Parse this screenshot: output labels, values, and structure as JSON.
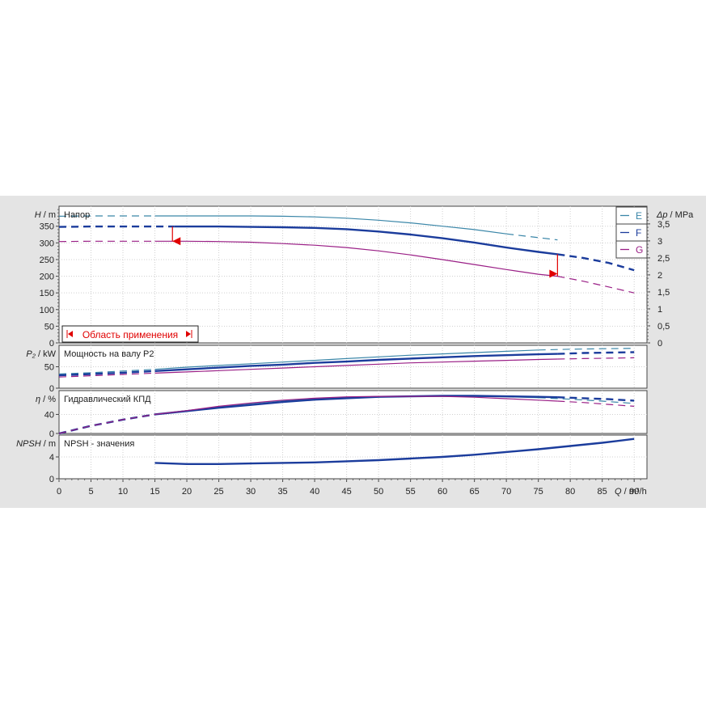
{
  "chart_data": {
    "type": "line",
    "x_axis": {
      "label_var": "Q",
      "label_unit": " / m³/h",
      "range": [
        0,
        92
      ],
      "ticks": [
        0,
        5,
        10,
        15,
        20,
        25,
        30,
        35,
        40,
        45,
        50,
        55,
        60,
        65,
        70,
        75,
        80,
        85,
        90
      ]
    },
    "legend": [
      {
        "name": "E",
        "color": "#3a86a8"
      },
      {
        "name": "F",
        "color": "#1b3c9c"
      },
      {
        "name": "G",
        "color": "#9a1f86"
      }
    ],
    "application_range": {
      "label": "Область применения",
      "q_min": 18,
      "q_max": 78,
      "color": "#e00000"
    },
    "panels": [
      {
        "id": "head",
        "title": "Напор",
        "ylabel_var": "H",
        "ylabel_unit": " / m",
        "ylim": [
          0,
          410
        ],
        "yticks": [
          0,
          50,
          100,
          150,
          200,
          250,
          300,
          350
        ],
        "secondary_axis": {
          "label_var": "Δp",
          "label_unit": " / MPa",
          "ylim": [
            0,
            4.02
          ],
          "ticks": [
            "0",
            "0,5",
            "1",
            "1,5",
            "2",
            "2,5",
            "3",
            "3,5"
          ],
          "values": [
            0,
            0.5,
            1,
            1.5,
            2,
            2.5,
            3,
            3.5
          ]
        },
        "series": [
          {
            "name": "E",
            "dashed": [
              [
                0,
                380
              ],
              [
                5,
                381
              ],
              [
                10,
                381
              ],
              [
                15,
                381
              ]
            ],
            "solid": [
              [
                15,
                381
              ],
              [
                20,
                381
              ],
              [
                25,
                381
              ],
              [
                30,
                381
              ],
              [
                35,
                380
              ],
              [
                40,
                378
              ],
              [
                45,
                374
              ],
              [
                50,
                368
              ],
              [
                55,
                360
              ],
              [
                60,
                350
              ],
              [
                65,
                340
              ],
              [
                70,
                327
              ]
            ],
            "dashed_tail": [
              [
                70,
                327
              ],
              [
                74,
                318
              ],
              [
                78,
                309
              ]
            ]
          },
          {
            "name": "F",
            "dashed": [
              [
                0,
                348
              ],
              [
                5,
                349
              ],
              [
                10,
                349
              ],
              [
                15,
                349
              ],
              [
                18,
                349
              ]
            ],
            "solid": [
              [
                18,
                349
              ],
              [
                20,
                349
              ],
              [
                25,
                349
              ],
              [
                30,
                348
              ],
              [
                35,
                347
              ],
              [
                40,
                345
              ],
              [
                45,
                341
              ],
              [
                50,
                334
              ],
              [
                55,
                325
              ],
              [
                60,
                314
              ],
              [
                65,
                301
              ],
              [
                70,
                286
              ],
              [
                75,
                273
              ],
              [
                78,
                266
              ]
            ],
            "dashed_tail": [
              [
                78,
                266
              ],
              [
                82,
                255
              ],
              [
                86,
                240
              ],
              [
                90,
                218
              ]
            ]
          },
          {
            "name": "G",
            "dashed": [
              [
                0,
                304
              ],
              [
                5,
                305
              ],
              [
                10,
                305
              ],
              [
                15,
                305
              ]
            ],
            "solid": [
              [
                15,
                305
              ],
              [
                20,
                305
              ],
              [
                25,
                304
              ],
              [
                30,
                302
              ],
              [
                35,
                298
              ],
              [
                40,
                293
              ],
              [
                45,
                286
              ],
              [
                50,
                276
              ],
              [
                55,
                264
              ],
              [
                60,
                250
              ],
              [
                65,
                235
              ],
              [
                70,
                220
              ],
              [
                75,
                206
              ],
              [
                78,
                200
              ]
            ],
            "dashed_tail": [
              [
                78,
                200
              ],
              [
                82,
                185
              ],
              [
                86,
                168
              ],
              [
                90,
                150
              ]
            ]
          }
        ]
      },
      {
        "id": "power",
        "title": "Мощность на валу P2",
        "ylabel_var": "P₂",
        "ylabel_unit": " / kW",
        "ylim": [
          0,
          100
        ],
        "yticks": [
          0,
          50
        ],
        "series": [
          {
            "name": "E",
            "dashed": [
              [
                0,
                33
              ],
              [
                5,
                36
              ],
              [
                10,
                40
              ],
              [
                15,
                44
              ]
            ],
            "solid": [
              [
                15,
                44
              ],
              [
                20,
                49
              ],
              [
                25,
                53
              ],
              [
                30,
                57
              ],
              [
                35,
                61
              ],
              [
                40,
                65
              ],
              [
                45,
                69
              ],
              [
                50,
                73
              ],
              [
                55,
                77
              ],
              [
                60,
                80
              ],
              [
                65,
                83
              ],
              [
                70,
                86
              ],
              [
                75,
                89
              ]
            ],
            "dashed_tail": [
              [
                75,
                89
              ],
              [
                80,
                91
              ],
              [
                85,
                92
              ],
              [
                90,
                93
              ]
            ]
          },
          {
            "name": "F",
            "dashed": [
              [
                0,
                30
              ],
              [
                5,
                33
              ],
              [
                10,
                36
              ],
              [
                15,
                40
              ]
            ],
            "solid": [
              [
                15,
                40
              ],
              [
                20,
                44
              ],
              [
                25,
                48
              ],
              [
                30,
                52
              ],
              [
                35,
                55
              ],
              [
                40,
                59
              ],
              [
                45,
                62
              ],
              [
                50,
                66
              ],
              [
                55,
                69
              ],
              [
                60,
                72
              ],
              [
                65,
                75
              ],
              [
                70,
                77
              ],
              [
                75,
                79
              ],
              [
                78,
                80
              ]
            ],
            "dashed_tail": [
              [
                78,
                80
              ],
              [
                82,
                82
              ],
              [
                86,
                83
              ],
              [
                90,
                84
              ]
            ]
          },
          {
            "name": "G",
            "dashed": [
              [
                0,
                26
              ],
              [
                5,
                29
              ],
              [
                10,
                32
              ],
              [
                15,
                35
              ]
            ],
            "solid": [
              [
                15,
                35
              ],
              [
                20,
                38
              ],
              [
                25,
                41
              ],
              [
                30,
                44
              ],
              [
                35,
                47
              ],
              [
                40,
                50
              ],
              [
                45,
                53
              ],
              [
                50,
                56
              ],
              [
                55,
                59
              ],
              [
                60,
                61
              ],
              [
                65,
                63
              ],
              [
                70,
                65
              ],
              [
                75,
                67
              ],
              [
                78,
                68
              ]
            ],
            "dashed_tail": [
              [
                78,
                68
              ],
              [
                82,
                69
              ],
              [
                86,
                70
              ],
              [
                90,
                71
              ]
            ]
          }
        ]
      },
      {
        "id": "efficiency",
        "title": "Гидравлический КПД",
        "ylabel_var": "η",
        "ylabel_unit": " / %",
        "ylim": [
          0,
          90
        ],
        "yticks": [
          0,
          40
        ],
        "series": [
          {
            "name": "E",
            "dashed": [
              [
                0,
                0
              ],
              [
                5,
                16
              ],
              [
                10,
                29
              ],
              [
                15,
                40
              ]
            ],
            "solid": [
              [
                15,
                40
              ],
              [
                20,
                48
              ],
              [
                25,
                56
              ],
              [
                30,
                63
              ],
              [
                35,
                69
              ],
              [
                40,
                73
              ],
              [
                45,
                76
              ],
              [
                50,
                77
              ],
              [
                55,
                78
              ],
              [
                60,
                78
              ],
              [
                65,
                78
              ],
              [
                70,
                77
              ],
              [
                75,
                75
              ]
            ],
            "dashed_tail": [
              [
                75,
                75
              ],
              [
                80,
                72
              ],
              [
                85,
                68
              ],
              [
                90,
                63
              ]
            ]
          },
          {
            "name": "F",
            "dashed": [
              [
                0,
                0
              ],
              [
                5,
                16
              ],
              [
                10,
                29
              ],
              [
                15,
                40
              ]
            ],
            "solid": [
              [
                15,
                40
              ],
              [
                20,
                47
              ],
              [
                25,
                54
              ],
              [
                30,
                60
              ],
              [
                35,
                66
              ],
              [
                40,
                71
              ],
              [
                45,
                74
              ],
              [
                50,
                77
              ],
              [
                55,
                78
              ],
              [
                60,
                79
              ],
              [
                65,
                79
              ],
              [
                70,
                78
              ],
              [
                75,
                77
              ],
              [
                78,
                76
              ]
            ],
            "dashed_tail": [
              [
                78,
                76
              ],
              [
                82,
                74
              ],
              [
                86,
                72
              ],
              [
                90,
                69
              ]
            ]
          },
          {
            "name": "G",
            "dashed": [
              [
                0,
                0
              ],
              [
                5,
                16
              ],
              [
                10,
                29
              ],
              [
                15,
                40
              ]
            ],
            "solid": [
              [
                15,
                40
              ],
              [
                20,
                48
              ],
              [
                25,
                57
              ],
              [
                30,
                64
              ],
              [
                35,
                70
              ],
              [
                40,
                74
              ],
              [
                45,
                77
              ],
              [
                50,
                78
              ],
              [
                55,
                78
              ],
              [
                60,
                78
              ],
              [
                65,
                76
              ],
              [
                70,
                73
              ],
              [
                75,
                70
              ],
              [
                78,
                68
              ]
            ],
            "dashed_tail": [
              [
                78,
                68
              ],
              [
                82,
                65
              ],
              [
                86,
                61
              ],
              [
                90,
                57
              ]
            ]
          }
        ]
      },
      {
        "id": "npsh",
        "title": "NPSH - значения",
        "ylabel_var": "NPSH",
        "ylabel_unit": " / m",
        "ylim": [
          0,
          8
        ],
        "yticks": [
          0,
          4
        ],
        "series": [
          {
            "name": "F",
            "solid": [
              [
                15,
                2.9
              ],
              [
                20,
                2.7
              ],
              [
                25,
                2.7
              ],
              [
                30,
                2.8
              ],
              [
                35,
                2.9
              ],
              [
                40,
                3.0
              ],
              [
                45,
                3.2
              ],
              [
                50,
                3.4
              ],
              [
                55,
                3.7
              ],
              [
                60,
                4.0
              ],
              [
                65,
                4.4
              ],
              [
                70,
                4.9
              ],
              [
                75,
                5.4
              ],
              [
                80,
                6.0
              ],
              [
                85,
                6.6
              ],
              [
                90,
                7.3
              ]
            ]
          }
        ]
      }
    ]
  }
}
